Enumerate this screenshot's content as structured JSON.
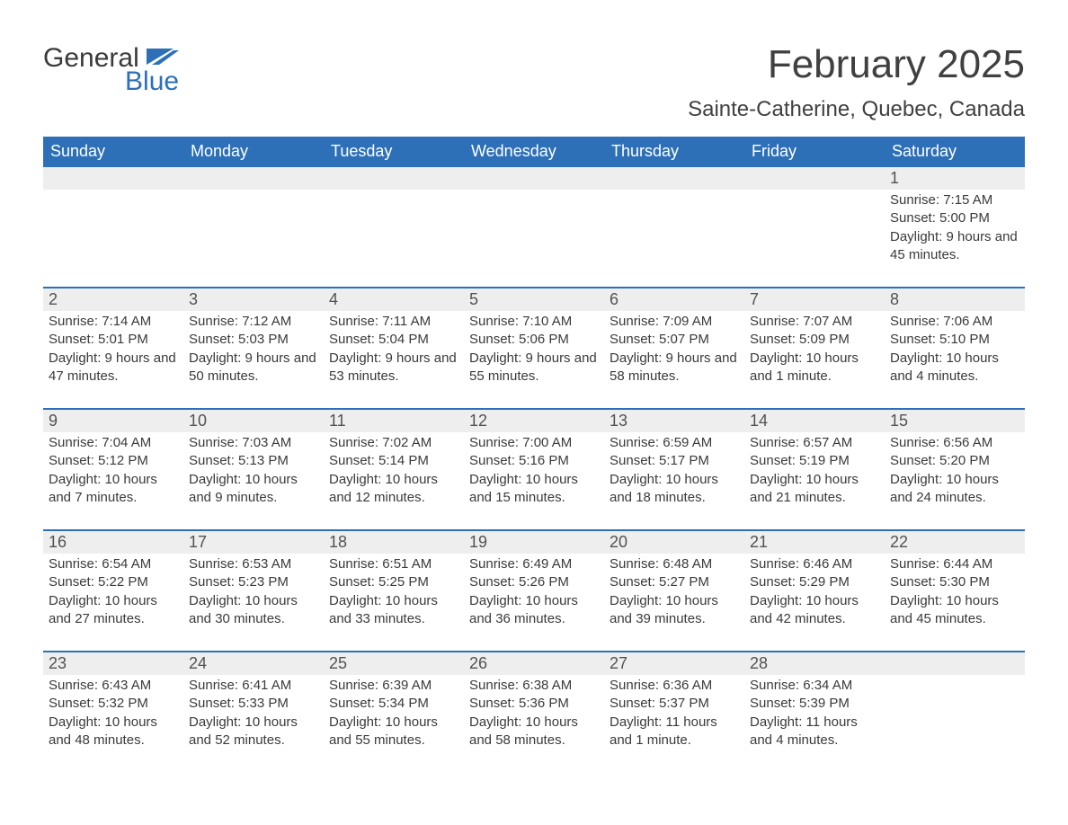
{
  "colors": {
    "header_bg": "#2d70b7",
    "header_text": "#ffffff",
    "band_bg": "#eeeeee",
    "week_divider": "#2d70b7",
    "body_text": "#3a3a3a",
    "title_text": "#404040",
    "logo_gray": "#3a3a3a",
    "logo_blue": "#2d70b7",
    "page_bg": "#ffffff"
  },
  "logo": {
    "word1": "General",
    "word2": "Blue"
  },
  "title": "February 2025",
  "location": "Sainte-Catherine, Quebec, Canada",
  "daysOfWeek": [
    "Sunday",
    "Monday",
    "Tuesday",
    "Wednesday",
    "Thursday",
    "Friday",
    "Saturday"
  ],
  "weeks": [
    [
      {
        "n": "",
        "sunrise": "",
        "sunset": "",
        "daylight": ""
      },
      {
        "n": "",
        "sunrise": "",
        "sunset": "",
        "daylight": ""
      },
      {
        "n": "",
        "sunrise": "",
        "sunset": "",
        "daylight": ""
      },
      {
        "n": "",
        "sunrise": "",
        "sunset": "",
        "daylight": ""
      },
      {
        "n": "",
        "sunrise": "",
        "sunset": "",
        "daylight": ""
      },
      {
        "n": "",
        "sunrise": "",
        "sunset": "",
        "daylight": ""
      },
      {
        "n": "1",
        "sunrise": "Sunrise: 7:15 AM",
        "sunset": "Sunset: 5:00 PM",
        "daylight": "Daylight: 9 hours and 45 minutes."
      }
    ],
    [
      {
        "n": "2",
        "sunrise": "Sunrise: 7:14 AM",
        "sunset": "Sunset: 5:01 PM",
        "daylight": "Daylight: 9 hours and 47 minutes."
      },
      {
        "n": "3",
        "sunrise": "Sunrise: 7:12 AM",
        "sunset": "Sunset: 5:03 PM",
        "daylight": "Daylight: 9 hours and 50 minutes."
      },
      {
        "n": "4",
        "sunrise": "Sunrise: 7:11 AM",
        "sunset": "Sunset: 5:04 PM",
        "daylight": "Daylight: 9 hours and 53 minutes."
      },
      {
        "n": "5",
        "sunrise": "Sunrise: 7:10 AM",
        "sunset": "Sunset: 5:06 PM",
        "daylight": "Daylight: 9 hours and 55 minutes."
      },
      {
        "n": "6",
        "sunrise": "Sunrise: 7:09 AM",
        "sunset": "Sunset: 5:07 PM",
        "daylight": "Daylight: 9 hours and 58 minutes."
      },
      {
        "n": "7",
        "sunrise": "Sunrise: 7:07 AM",
        "sunset": "Sunset: 5:09 PM",
        "daylight": "Daylight: 10 hours and 1 minute."
      },
      {
        "n": "8",
        "sunrise": "Sunrise: 7:06 AM",
        "sunset": "Sunset: 5:10 PM",
        "daylight": "Daylight: 10 hours and 4 minutes."
      }
    ],
    [
      {
        "n": "9",
        "sunrise": "Sunrise: 7:04 AM",
        "sunset": "Sunset: 5:12 PM",
        "daylight": "Daylight: 10 hours and 7 minutes."
      },
      {
        "n": "10",
        "sunrise": "Sunrise: 7:03 AM",
        "sunset": "Sunset: 5:13 PM",
        "daylight": "Daylight: 10 hours and 9 minutes."
      },
      {
        "n": "11",
        "sunrise": "Sunrise: 7:02 AM",
        "sunset": "Sunset: 5:14 PM",
        "daylight": "Daylight: 10 hours and 12 minutes."
      },
      {
        "n": "12",
        "sunrise": "Sunrise: 7:00 AM",
        "sunset": "Sunset: 5:16 PM",
        "daylight": "Daylight: 10 hours and 15 minutes."
      },
      {
        "n": "13",
        "sunrise": "Sunrise: 6:59 AM",
        "sunset": "Sunset: 5:17 PM",
        "daylight": "Daylight: 10 hours and 18 minutes."
      },
      {
        "n": "14",
        "sunrise": "Sunrise: 6:57 AM",
        "sunset": "Sunset: 5:19 PM",
        "daylight": "Daylight: 10 hours and 21 minutes."
      },
      {
        "n": "15",
        "sunrise": "Sunrise: 6:56 AM",
        "sunset": "Sunset: 5:20 PM",
        "daylight": "Daylight: 10 hours and 24 minutes."
      }
    ],
    [
      {
        "n": "16",
        "sunrise": "Sunrise: 6:54 AM",
        "sunset": "Sunset: 5:22 PM",
        "daylight": "Daylight: 10 hours and 27 minutes."
      },
      {
        "n": "17",
        "sunrise": "Sunrise: 6:53 AM",
        "sunset": "Sunset: 5:23 PM",
        "daylight": "Daylight: 10 hours and 30 minutes."
      },
      {
        "n": "18",
        "sunrise": "Sunrise: 6:51 AM",
        "sunset": "Sunset: 5:25 PM",
        "daylight": "Daylight: 10 hours and 33 minutes."
      },
      {
        "n": "19",
        "sunrise": "Sunrise: 6:49 AM",
        "sunset": "Sunset: 5:26 PM",
        "daylight": "Daylight: 10 hours and 36 minutes."
      },
      {
        "n": "20",
        "sunrise": "Sunrise: 6:48 AM",
        "sunset": "Sunset: 5:27 PM",
        "daylight": "Daylight: 10 hours and 39 minutes."
      },
      {
        "n": "21",
        "sunrise": "Sunrise: 6:46 AM",
        "sunset": "Sunset: 5:29 PM",
        "daylight": "Daylight: 10 hours and 42 minutes."
      },
      {
        "n": "22",
        "sunrise": "Sunrise: 6:44 AM",
        "sunset": "Sunset: 5:30 PM",
        "daylight": "Daylight: 10 hours and 45 minutes."
      }
    ],
    [
      {
        "n": "23",
        "sunrise": "Sunrise: 6:43 AM",
        "sunset": "Sunset: 5:32 PM",
        "daylight": "Daylight: 10 hours and 48 minutes."
      },
      {
        "n": "24",
        "sunrise": "Sunrise: 6:41 AM",
        "sunset": "Sunset: 5:33 PM",
        "daylight": "Daylight: 10 hours and 52 minutes."
      },
      {
        "n": "25",
        "sunrise": "Sunrise: 6:39 AM",
        "sunset": "Sunset: 5:34 PM",
        "daylight": "Daylight: 10 hours and 55 minutes."
      },
      {
        "n": "26",
        "sunrise": "Sunrise: 6:38 AM",
        "sunset": "Sunset: 5:36 PM",
        "daylight": "Daylight: 10 hours and 58 minutes."
      },
      {
        "n": "27",
        "sunrise": "Sunrise: 6:36 AM",
        "sunset": "Sunset: 5:37 PM",
        "daylight": "Daylight: 11 hours and 1 minute."
      },
      {
        "n": "28",
        "sunrise": "Sunrise: 6:34 AM",
        "sunset": "Sunset: 5:39 PM",
        "daylight": "Daylight: 11 hours and 4 minutes."
      },
      {
        "n": "",
        "sunrise": "",
        "sunset": "",
        "daylight": ""
      }
    ]
  ],
  "typography": {
    "title_fontsize": 44,
    "location_fontsize": 24,
    "dow_fontsize": 18,
    "daynum_fontsize": 18,
    "body_fontsize": 15
  }
}
